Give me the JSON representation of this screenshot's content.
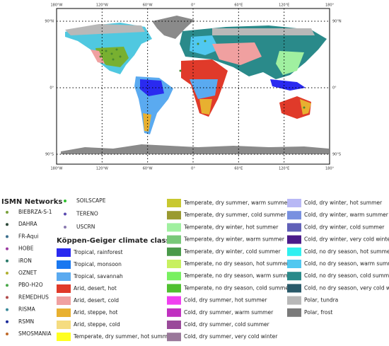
{
  "map": {
    "top_labels": [
      "180°W",
      "120°W",
      "60°W",
      "0°",
      "60°E",
      "120°E",
      "180°"
    ],
    "bottom_labels": [
      "180°W",
      "120°W",
      "60°W",
      "0°",
      "60°E",
      "120°E",
      "180°"
    ],
    "left_labels": [
      "90°N",
      "0°",
      "90°S"
    ],
    "right_labels": [
      "90°N",
      "0°",
      "90°S"
    ]
  },
  "legend": {
    "networks_title": "ISMN Networks",
    "networks": [
      {
        "name": "BIEBRZA-S-1",
        "color": "#7aa23c"
      },
      {
        "name": "DAHRA",
        "color": "#2e4a3a"
      },
      {
        "name": "FR-Aqui",
        "color": "#3a6e8c"
      },
      {
        "name": "HOBE",
        "color": "#9a3aa0"
      },
      {
        "name": "iRON",
        "color": "#2a7a6a"
      },
      {
        "name": "OZNET",
        "color": "#b0b030"
      },
      {
        "name": "PBO-H2O",
        "color": "#4aa84a"
      },
      {
        "name": "REMEDHUS",
        "color": "#b04a4a"
      },
      {
        "name": "RISMA",
        "color": "#3a8a9a"
      },
      {
        "name": "RSMN",
        "color": "#1a2a9a"
      },
      {
        "name": "SMOSMANIA",
        "color": "#c06a2a"
      },
      {
        "name": "SOILSCAPE",
        "color": "#30c030"
      },
      {
        "name": "TERENO",
        "color": "#5a4ab0"
      },
      {
        "name": "USCRN",
        "color": "#8a7ab0"
      }
    ],
    "climate_title": "Köppen-Geiger climate classes",
    "climate_classes": [
      {
        "name": "Tropical, rainforest",
        "color": "#2a2af0"
      },
      {
        "name": "Tropical, monsoon",
        "color": "#1a78f0"
      },
      {
        "name": "Tropical, savannah",
        "color": "#5aaaf0"
      },
      {
        "name": "Arid, desert, hot",
        "color": "#e03a2a"
      },
      {
        "name": "Arid, desert, cold",
        "color": "#f0a0a0"
      },
      {
        "name": "Arid, steppe, hot",
        "color": "#e8b030"
      },
      {
        "name": "Arid, steppe, cold",
        "color": "#f5dc80"
      },
      {
        "name": "Temperate, dry summer, hot summer",
        "color": "#ffff20"
      },
      {
        "name": "Temperate, dry summer, warm summer",
        "color": "#c8c830"
      },
      {
        "name": "Temperate, dry summer, cold summer",
        "color": "#9a9a30"
      },
      {
        "name": "Temperate, dry winter, hot summer",
        "color": "#a0f0a0"
      },
      {
        "name": "Temperate, dry winter, warm summer",
        "color": "#78c878"
      },
      {
        "name": "Temperate, dry winter, cold summer",
        "color": "#4a9a4a"
      },
      {
        "name": "Temperate, no dry season, hot summer",
        "color": "#c8f060"
      },
      {
        "name": "Temperate, no dry season, warm summer",
        "color": "#78f060"
      },
      {
        "name": "Temperate, no dry season, cold summer",
        "color": "#50c030"
      },
      {
        "name": "Cold, dry summer, hot summer",
        "color": "#f040f0"
      },
      {
        "name": "Cold, dry summer, warm summer",
        "color": "#c030c0"
      },
      {
        "name": "Cold, dry summer, cold summer",
        "color": "#9a4a9a"
      },
      {
        "name": "Cold, dry summer, very cold winter",
        "color": "#9a789a"
      },
      {
        "name": "Cold, dry winter, hot summer",
        "color": "#b8b8f5"
      },
      {
        "name": "Cold, dry winter, warm summer",
        "color": "#7890e0"
      },
      {
        "name": "Cold, dry winter, cold summer",
        "color": "#6060b8"
      },
      {
        "name": "Cold, dry winter, very cold winter",
        "color": "#4a1a8a"
      },
      {
        "name": "Cold, no dry season, hot summer",
        "color": "#30f0f0"
      },
      {
        "name": "Cold, no dry season, warm summer",
        "color": "#50c8f0"
      },
      {
        "name": "Cold, no dry season, cold summer",
        "color": "#2a8a8a"
      },
      {
        "name": "Cold, no dry season, very cold winter",
        "color": "#2a5a6a"
      },
      {
        "name": "Polar, tundra",
        "color": "#b8b8b8"
      },
      {
        "name": "Polar, frost",
        "color": "#7a7a7a"
      }
    ]
  }
}
